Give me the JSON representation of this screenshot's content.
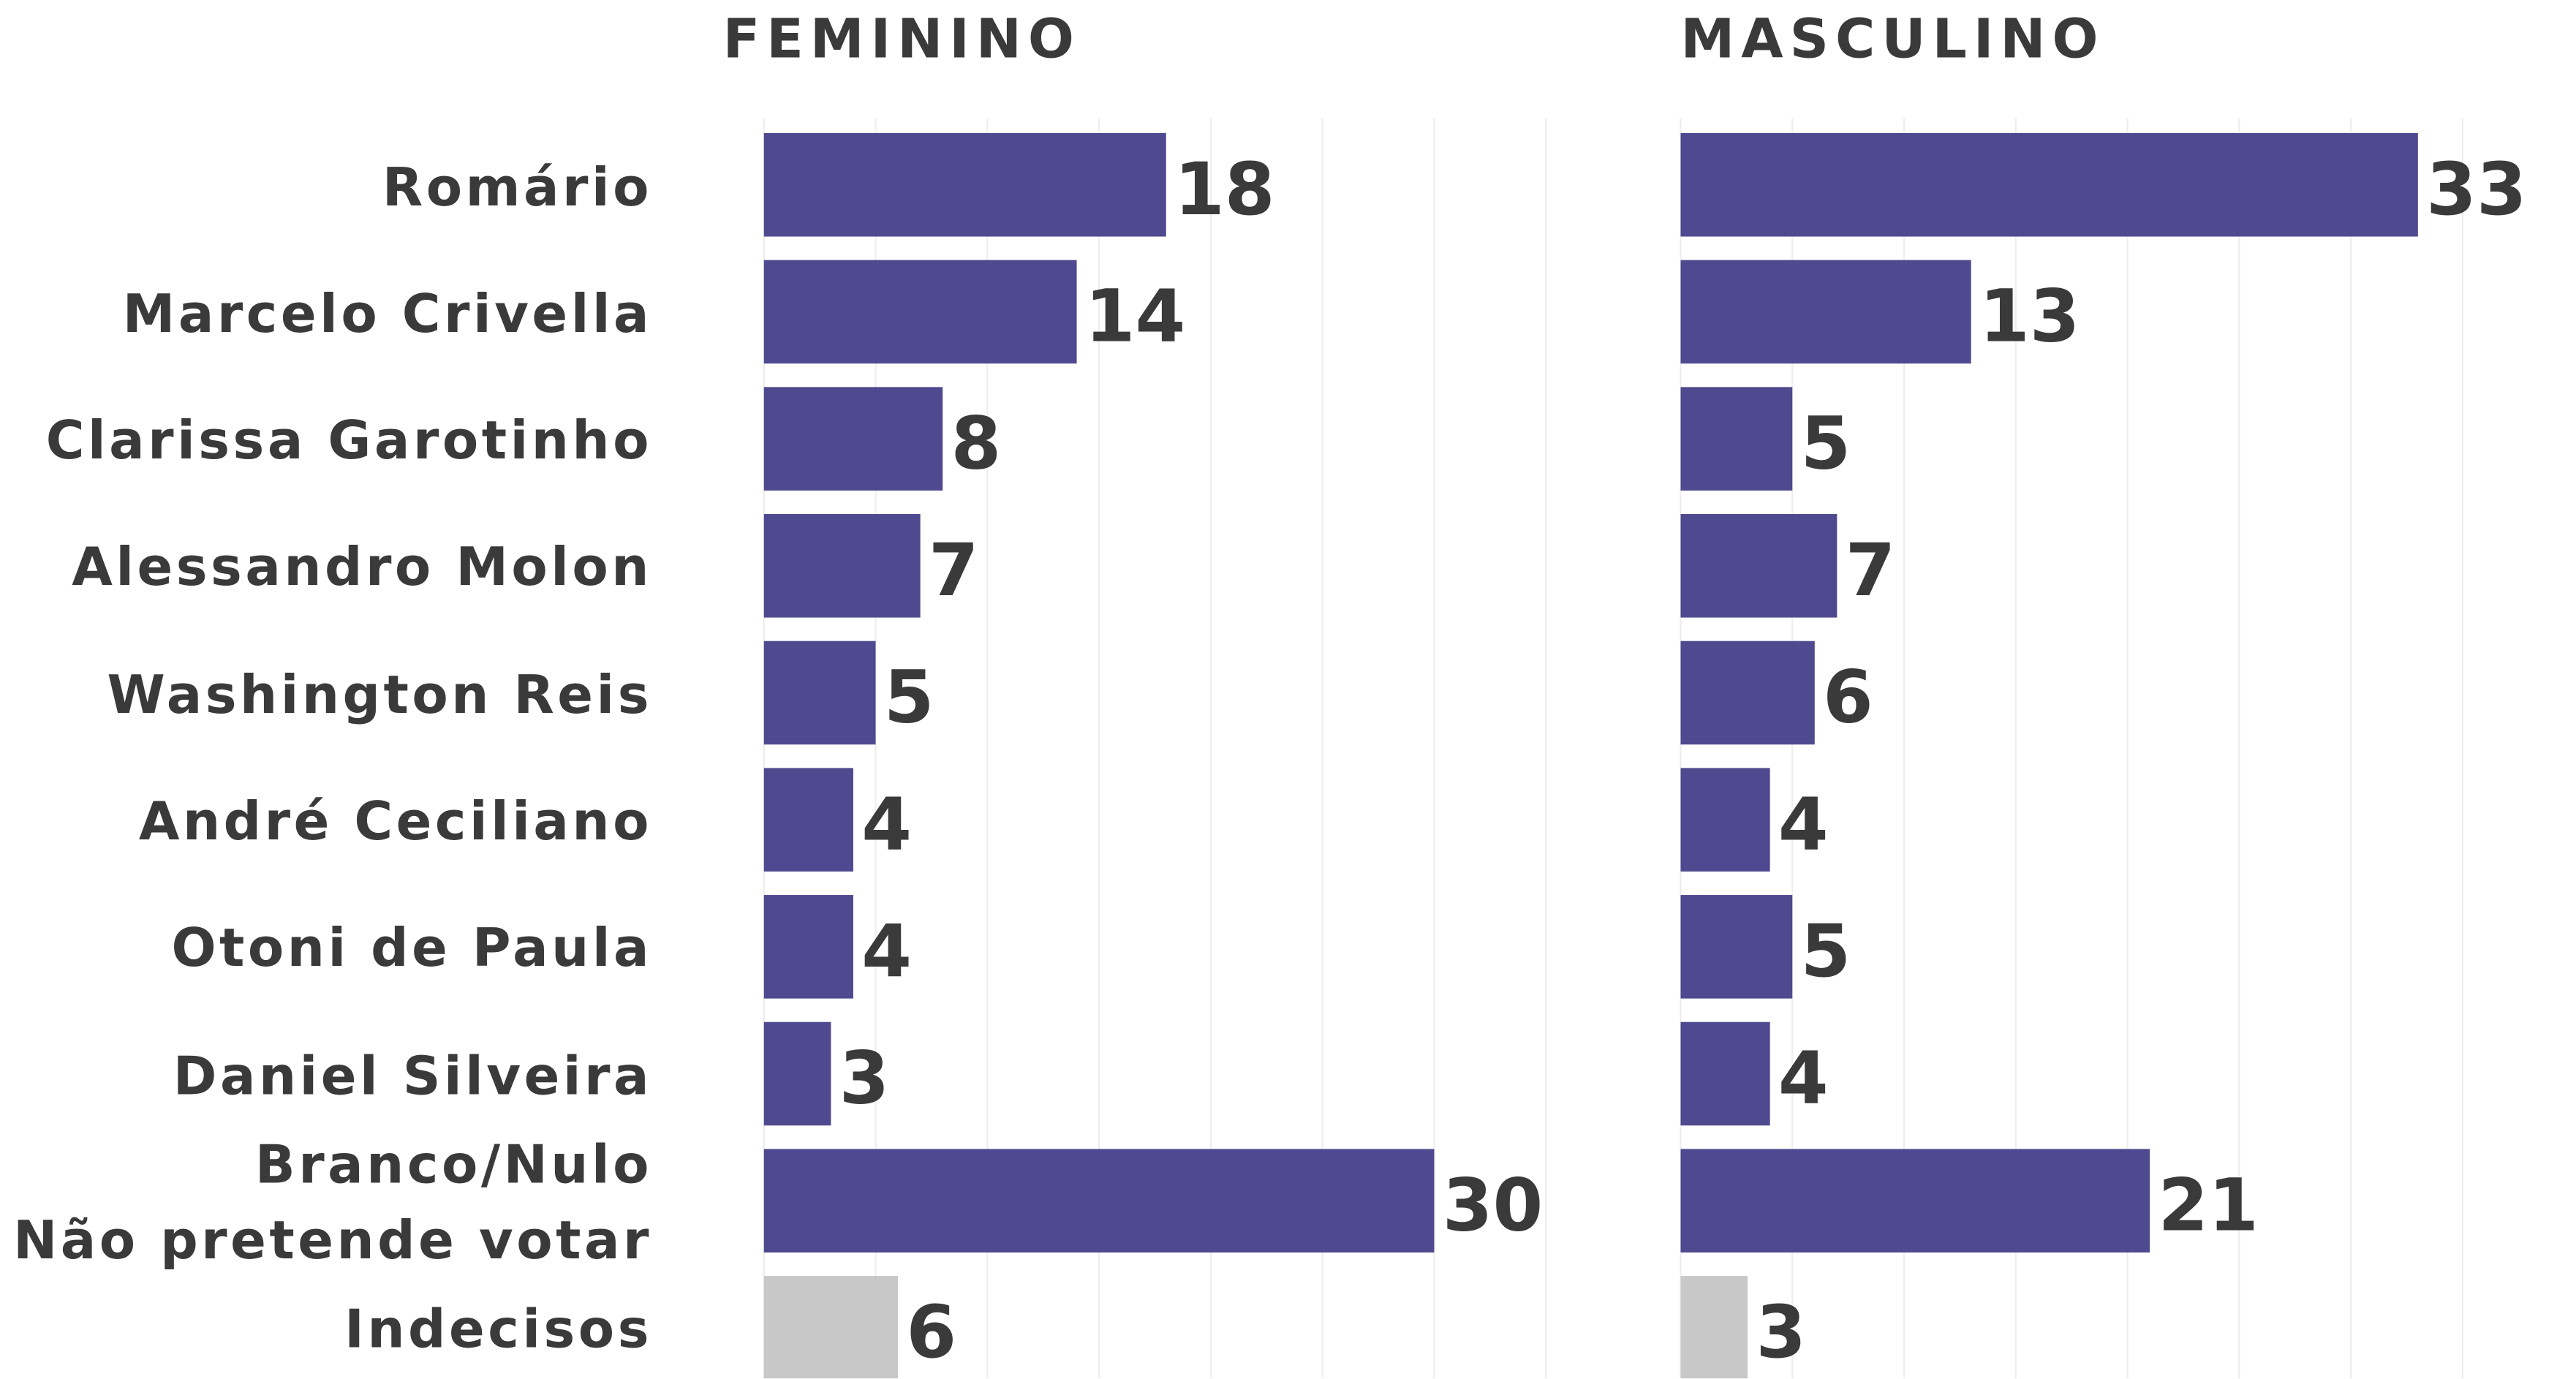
{
  "chart_data": {
    "type": "bar",
    "orientation": "horizontal",
    "categories": [
      "Romário",
      "Marcelo Crivella",
      "Clarissa Garotinho",
      "Alessandro Molon",
      "Washington Reis",
      "André Ceciliano",
      "Otoni de Paula",
      "Daniel Silveira",
      "Branco/Nulo\nNão pretende votar",
      "Indecisos"
    ],
    "series": [
      {
        "name": "FEMININO",
        "values": [
          18,
          14,
          8,
          7,
          5,
          4,
          4,
          3,
          30,
          6
        ],
        "colors": [
          "#4f4a8f",
          "#4f4a8f",
          "#4f4a8f",
          "#4f4a8f",
          "#4f4a8f",
          "#4f4a8f",
          "#4f4a8f",
          "#4f4a8f",
          "#4f4a8f",
          "#c8c8c8"
        ]
      },
      {
        "name": "MASCULINO",
        "values": [
          33,
          13,
          5,
          7,
          6,
          4,
          5,
          4,
          21,
          3
        ],
        "colors": [
          "#4f4a8f",
          "#4f4a8f",
          "#4f4a8f",
          "#4f4a8f",
          "#4f4a8f",
          "#4f4a8f",
          "#4f4a8f",
          "#4f4a8f",
          "#4f4a8f",
          "#c8c8c8"
        ]
      }
    ],
    "xlim": [
      0,
      35
    ],
    "xticks": [
      0,
      5,
      10,
      15,
      20,
      25,
      30,
      35
    ],
    "grid": true
  }
}
